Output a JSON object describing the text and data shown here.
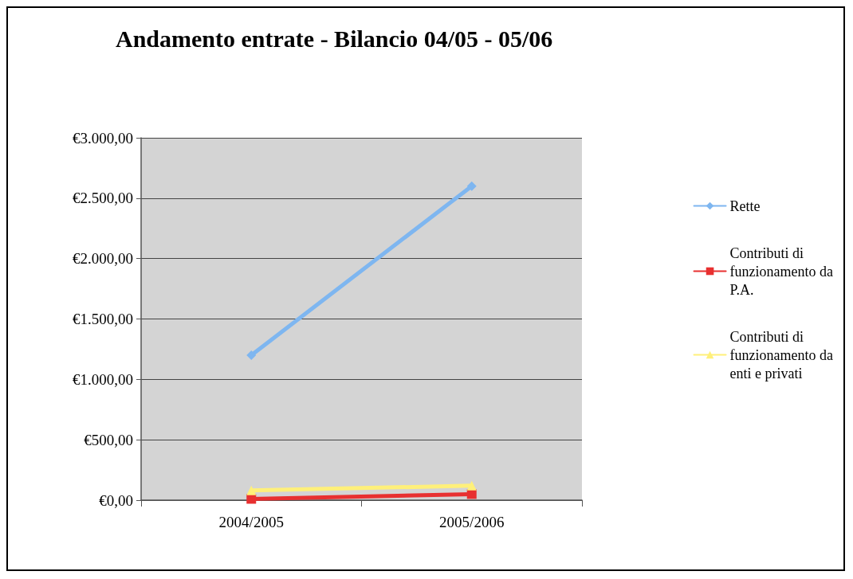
{
  "chart_data": {
    "type": "line",
    "title": "Andamento entrate - Bilancio 04/05 - 05/06",
    "categories": [
      "2004/2005",
      "2005/2006"
    ],
    "series": [
      {
        "name": "Rette",
        "color": "#7eb6f0",
        "values": [
          1200,
          2600
        ],
        "marker": "diamond"
      },
      {
        "name": "Contributi di\nfunzionamento da\nP.A.",
        "color": "#e83030",
        "values": [
          10,
          50
        ],
        "marker": "square"
      },
      {
        "name": "Contributi di\nfunzionamento da\nenti e privati",
        "color": "#fff07a",
        "values": [
          80,
          120
        ],
        "marker": "triangle"
      }
    ],
    "ylim": [
      0,
      3000
    ],
    "yticks": [
      {
        "value": 0,
        "label": "€0,00"
      },
      {
        "value": 500,
        "label": "€500,00"
      },
      {
        "value": 1000,
        "label": "€1.000,00"
      },
      {
        "value": 1500,
        "label": "€1.500,00"
      },
      {
        "value": 2000,
        "label": "€2.000,00"
      },
      {
        "value": 2500,
        "label": "€2.500,00"
      },
      {
        "value": 3000,
        "label": "€3.000,00"
      }
    ],
    "grid": "y",
    "legend": "right",
    "line_style": "solid"
  }
}
